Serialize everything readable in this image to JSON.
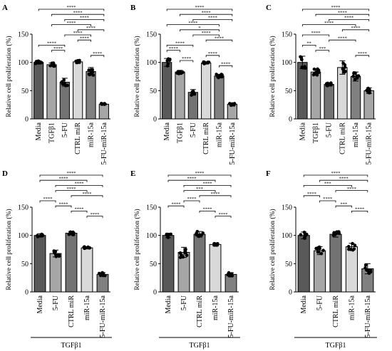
{
  "chart_data": [
    {
      "panel": "A",
      "type": "bar",
      "ylabel": "Relative cell proliferation (%)",
      "ylim": [
        0,
        150
      ],
      "yticks": [
        0,
        50,
        100,
        150
      ],
      "categories": [
        "Media",
        "TGFβ1",
        "5-FU",
        "CTRL miR",
        "miR-15a",
        "5-FU-miR-15a"
      ],
      "values": [
        100,
        96,
        65,
        101,
        84,
        26
      ],
      "errors": [
        3,
        3,
        7,
        3,
        7,
        1
      ],
      "colors": [
        "#595959",
        "#a6a6a6",
        "#737373",
        "#d9d9d9",
        "#808080",
        "#a6a6a6"
      ],
      "comparisons": [
        {
          "from": 0,
          "to": 5,
          "label": "****"
        },
        {
          "from": 1,
          "to": 5,
          "label": "****"
        },
        {
          "from": 2,
          "to": 5,
          "label": "****"
        },
        {
          "from": 1,
          "to": 4,
          "label": "****"
        },
        {
          "from": 3,
          "to": 5,
          "label": "****"
        },
        {
          "from": 2,
          "to": 4,
          "label": "****"
        },
        {
          "from": 3,
          "to": 4,
          "label": "****"
        },
        {
          "from": 0,
          "to": 2,
          "label": "****"
        },
        {
          "from": 1,
          "to": 2,
          "label": "****"
        },
        {
          "from": 4,
          "to": 5,
          "label": "****"
        }
      ],
      "footer": ""
    },
    {
      "panel": "B",
      "type": "bar",
      "ylabel": "Relative cell proliferation (%)",
      "ylim": [
        0,
        150
      ],
      "yticks": [
        0,
        50,
        100,
        150
      ],
      "categories": [
        "Media",
        "TGFβ1",
        "5-FU",
        "CTRL miR",
        "miR-15a",
        "5-FU-miR-15a"
      ],
      "values": [
        100,
        83,
        47,
        99,
        76,
        26
      ],
      "errors": [
        7,
        3,
        5,
        2,
        3,
        2
      ],
      "colors": [
        "#595959",
        "#a6a6a6",
        "#737373",
        "#d9d9d9",
        "#808080",
        "#a6a6a6"
      ],
      "comparisons": [
        {
          "from": 0,
          "to": 5,
          "label": "****"
        },
        {
          "from": 1,
          "to": 5,
          "label": "****"
        },
        {
          "from": 2,
          "to": 5,
          "label": "****"
        },
        {
          "from": 0,
          "to": 4,
          "label": "****"
        },
        {
          "from": 1,
          "to": 4,
          "label": "*"
        },
        {
          "from": 2,
          "to": 4,
          "label": "****"
        },
        {
          "from": 3,
          "to": 5,
          "label": "****"
        },
        {
          "from": 0,
          "to": 2,
          "label": "****"
        },
        {
          "from": 0,
          "to": 1,
          "label": "****"
        },
        {
          "from": 3,
          "to": 4,
          "label": "****"
        },
        {
          "from": 1,
          "to": 2,
          "label": "****"
        },
        {
          "from": 4,
          "to": 5,
          "label": "****"
        }
      ],
      "footer": ""
    },
    {
      "panel": "C",
      "type": "bar",
      "ylabel": "Relative cell proliferation (%)",
      "ylim": [
        0,
        150
      ],
      "yticks": [
        0,
        50,
        100,
        150
      ],
      "categories": [
        "Media",
        "TGFβ1",
        "5-FU",
        "CTRL miR",
        "miR-15a",
        "5-FU-miR-15a"
      ],
      "values": [
        100,
        83,
        61,
        91,
        75,
        50
      ],
      "errors": [
        11,
        6,
        3,
        12,
        8,
        5
      ],
      "colors": [
        "#595959",
        "#a6a6a6",
        "#737373",
        "#d9d9d9",
        "#808080",
        "#a6a6a6"
      ],
      "comparisons": [
        {
          "from": 0,
          "to": 5,
          "label": "****"
        },
        {
          "from": 1,
          "to": 5,
          "label": "****"
        },
        {
          "from": 2,
          "to": 5,
          "label": "****"
        },
        {
          "from": 0,
          "to": 4,
          "label": "****"
        },
        {
          "from": 3,
          "to": 5,
          "label": "****"
        },
        {
          "from": 0,
          "to": 2,
          "label": "****"
        },
        {
          "from": 2,
          "to": 4,
          "label": "****"
        },
        {
          "from": 0,
          "to": 1,
          "label": "**"
        },
        {
          "from": 1,
          "to": 2,
          "label": "***"
        },
        {
          "from": 4,
          "to": 5,
          "label": "****"
        }
      ],
      "footer": ""
    },
    {
      "panel": "D",
      "type": "bar",
      "ylabel": "Relative cell proliferation (%)",
      "ylim": [
        0,
        150
      ],
      "yticks": [
        0,
        50,
        100,
        150
      ],
      "categories": [
        "Media",
        "5-FU",
        "CTRL miR",
        "miR-15a",
        "5-FU-miR-15a"
      ],
      "values": [
        100,
        68,
        104,
        78,
        31
      ],
      "errors": [
        3,
        6,
        3,
        2,
        3
      ],
      "colors": [
        "#595959",
        "#a6a6a6",
        "#737373",
        "#d9d9d9",
        "#808080"
      ],
      "comparisons": [
        {
          "from": 0,
          "to": 4,
          "label": "****"
        },
        {
          "from": 0,
          "to": 3,
          "label": "****"
        },
        {
          "from": 1,
          "to": 4,
          "label": "****"
        },
        {
          "from": 1,
          "to": 3,
          "label": "****"
        },
        {
          "from": 2,
          "to": 4,
          "label": "****"
        },
        {
          "from": 0,
          "to": 1,
          "label": "****"
        },
        {
          "from": 1,
          "to": 2,
          "label": "****"
        },
        {
          "from": 2,
          "to": 3,
          "label": "****"
        },
        {
          "from": 3,
          "to": 4,
          "label": "****"
        }
      ],
      "footer": "TGFβ1"
    },
    {
      "panel": "E",
      "type": "bar",
      "ylabel": "Relative cell proliferation (%)",
      "ylim": [
        0,
        150
      ],
      "yticks": [
        0,
        50,
        100,
        150
      ],
      "categories": [
        "Media",
        "5-FU",
        "CTRL miR",
        "miR-15a",
        "5-FU-miR-15a"
      ],
      "values": [
        100,
        70,
        102,
        84,
        31
      ],
      "errors": [
        4,
        9,
        5,
        2,
        3
      ],
      "colors": [
        "#595959",
        "#a6a6a6",
        "#737373",
        "#d9d9d9",
        "#808080"
      ],
      "comparisons": [
        {
          "from": 0,
          "to": 4,
          "label": "****"
        },
        {
          "from": 0,
          "to": 3,
          "label": "****"
        },
        {
          "from": 1,
          "to": 4,
          "label": "****"
        },
        {
          "from": 1,
          "to": 3,
          "label": "***"
        },
        {
          "from": 2,
          "to": 4,
          "label": "****"
        },
        {
          "from": 1,
          "to": 2,
          "label": "****"
        },
        {
          "from": 0,
          "to": 1,
          "label": "****"
        },
        {
          "from": 2,
          "to": 3,
          "label": "****"
        },
        {
          "from": 3,
          "to": 4,
          "label": "****"
        }
      ],
      "footer": "TGFβ1"
    },
    {
      "panel": "F",
      "type": "bar",
      "ylabel": "Relative cell proliferation (%)",
      "ylim": [
        0,
        150
      ],
      "yticks": [
        0,
        50,
        100,
        150
      ],
      "categories": [
        "Media",
        "5-FU",
        "CTRL miR",
        "miR-15a",
        "5-FU-miR-15a"
      ],
      "values": [
        100,
        73,
        102,
        80,
        41
      ],
      "errors": [
        6,
        7,
        5,
        6,
        9
      ],
      "colors": [
        "#595959",
        "#a6a6a6",
        "#737373",
        "#d9d9d9",
        "#808080"
      ],
      "comparisons": [
        {
          "from": 0,
          "to": 4,
          "label": "****"
        },
        {
          "from": 1,
          "to": 4,
          "label": "****"
        },
        {
          "from": 0,
          "to": 3,
          "label": "***"
        },
        {
          "from": 2,
          "to": 4,
          "label": "****"
        },
        {
          "from": 0,
          "to": 1,
          "label": "****"
        },
        {
          "from": 1,
          "to": 2,
          "label": "****"
        },
        {
          "from": 2,
          "to": 3,
          "label": "***"
        },
        {
          "from": 3,
          "to": 4,
          "label": "****"
        }
      ],
      "footer": "TGFβ1"
    }
  ]
}
